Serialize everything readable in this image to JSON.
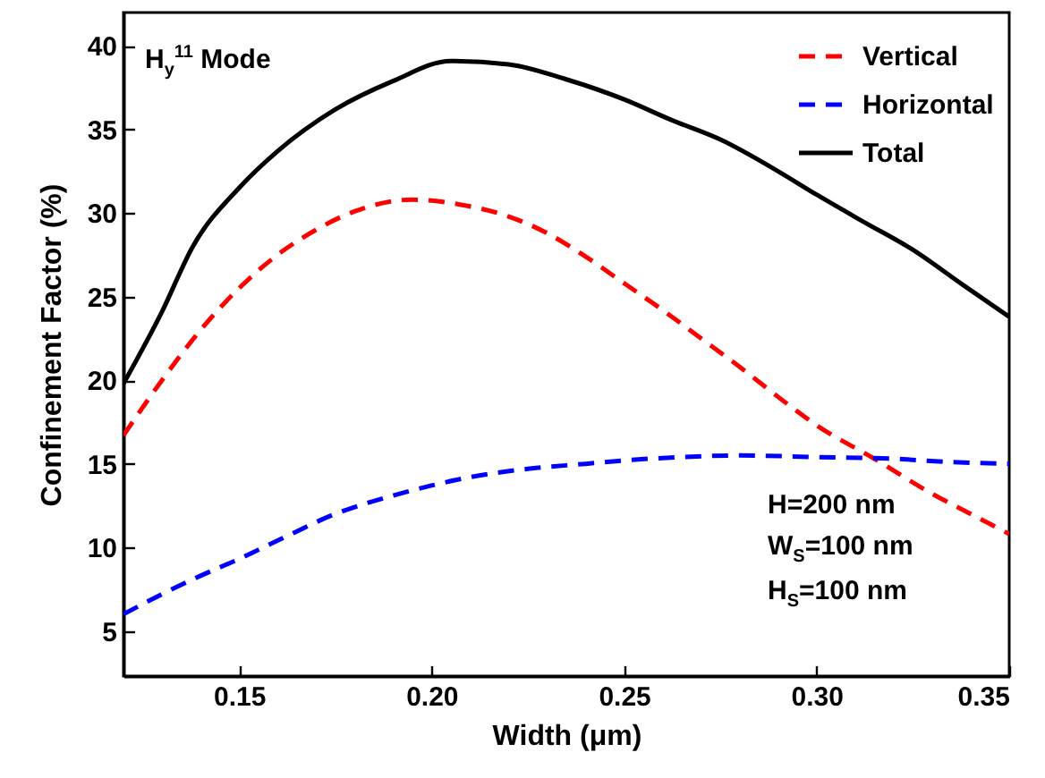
{
  "chart_data": {
    "type": "line",
    "xlabel": "Width (μm)",
    "ylabel": "Confinement Factor (%)",
    "xlim": [
      0.12,
      0.35
    ],
    "xticks": [
      {
        "value": 0.15,
        "label": "0.15"
      },
      {
        "value": 0.2,
        "label": "0.20"
      },
      {
        "value": 0.25,
        "label": "0.25"
      },
      {
        "value": 0.3,
        "label": "0.30"
      },
      {
        "value": 0.35,
        "label": "0.35"
      }
    ],
    "ylim": [
      2.3,
      42
    ],
    "yticks": [
      5,
      10,
      15,
      20,
      25,
      30,
      35,
      40
    ],
    "grid": false,
    "legend": "top right",
    "marker": "none",
    "annotations": [
      "H$_{y}$$^{11}$ Mode",
      "H=200 nm",
      "W$_{S}$=100 nm",
      "H$_{S}$=100 nm"
    ],
    "series": [
      {
        "name": "Vertical",
        "color": "#ff0000",
        "line_style": "dashed",
        "x": [
          0.12,
          0.13,
          0.14,
          0.15,
          0.16,
          0.17,
          0.18,
          0.195,
          0.21,
          0.22,
          0.23,
          0.24,
          0.25,
          0.26,
          0.27,
          0.28,
          0.29,
          0.3,
          0.315,
          0.33,
          0.34,
          0.35
        ],
        "values": [
          16.7,
          20,
          23,
          25.5,
          27.5,
          29,
          30.1,
          30.8,
          30.4,
          29.8,
          28.8,
          27.4,
          25.8,
          24.2,
          22.5,
          20.8,
          19,
          17.3,
          15.3,
          13.2,
          12,
          10.8
        ]
      },
      {
        "name": "Horizontal",
        "color": "#0000ff",
        "line_style": "dashed",
        "x": [
          0.12,
          0.13,
          0.14,
          0.15,
          0.16,
          0.175,
          0.19,
          0.2,
          0.21,
          0.225,
          0.24,
          0.25,
          0.265,
          0.28,
          0.3,
          0.32,
          0.335,
          0.35
        ],
        "values": [
          6,
          7.2,
          8.3,
          9.3,
          10.4,
          12,
          13.1,
          13.7,
          14.2,
          14.7,
          15,
          15.2,
          15.4,
          15.5,
          15.4,
          15.3,
          15.1,
          15
        ]
      },
      {
        "name": "Total",
        "color": "#000000",
        "line_style": "solid",
        "x": [
          0.12,
          0.13,
          0.138,
          0.15,
          0.16,
          0.175,
          0.19,
          0.205,
          0.22,
          0.235,
          0.25,
          0.262,
          0.275,
          0.29,
          0.3,
          0.312,
          0.325,
          0.338,
          0.35
        ],
        "values": [
          19.8,
          24.1,
          28,
          31.5,
          33.7,
          36.2,
          37.9,
          39.1,
          38.9,
          38,
          36.8,
          35.6,
          34.4,
          32.5,
          31.1,
          29.5,
          27.8,
          25.7,
          23.8
        ]
      }
    ]
  }
}
